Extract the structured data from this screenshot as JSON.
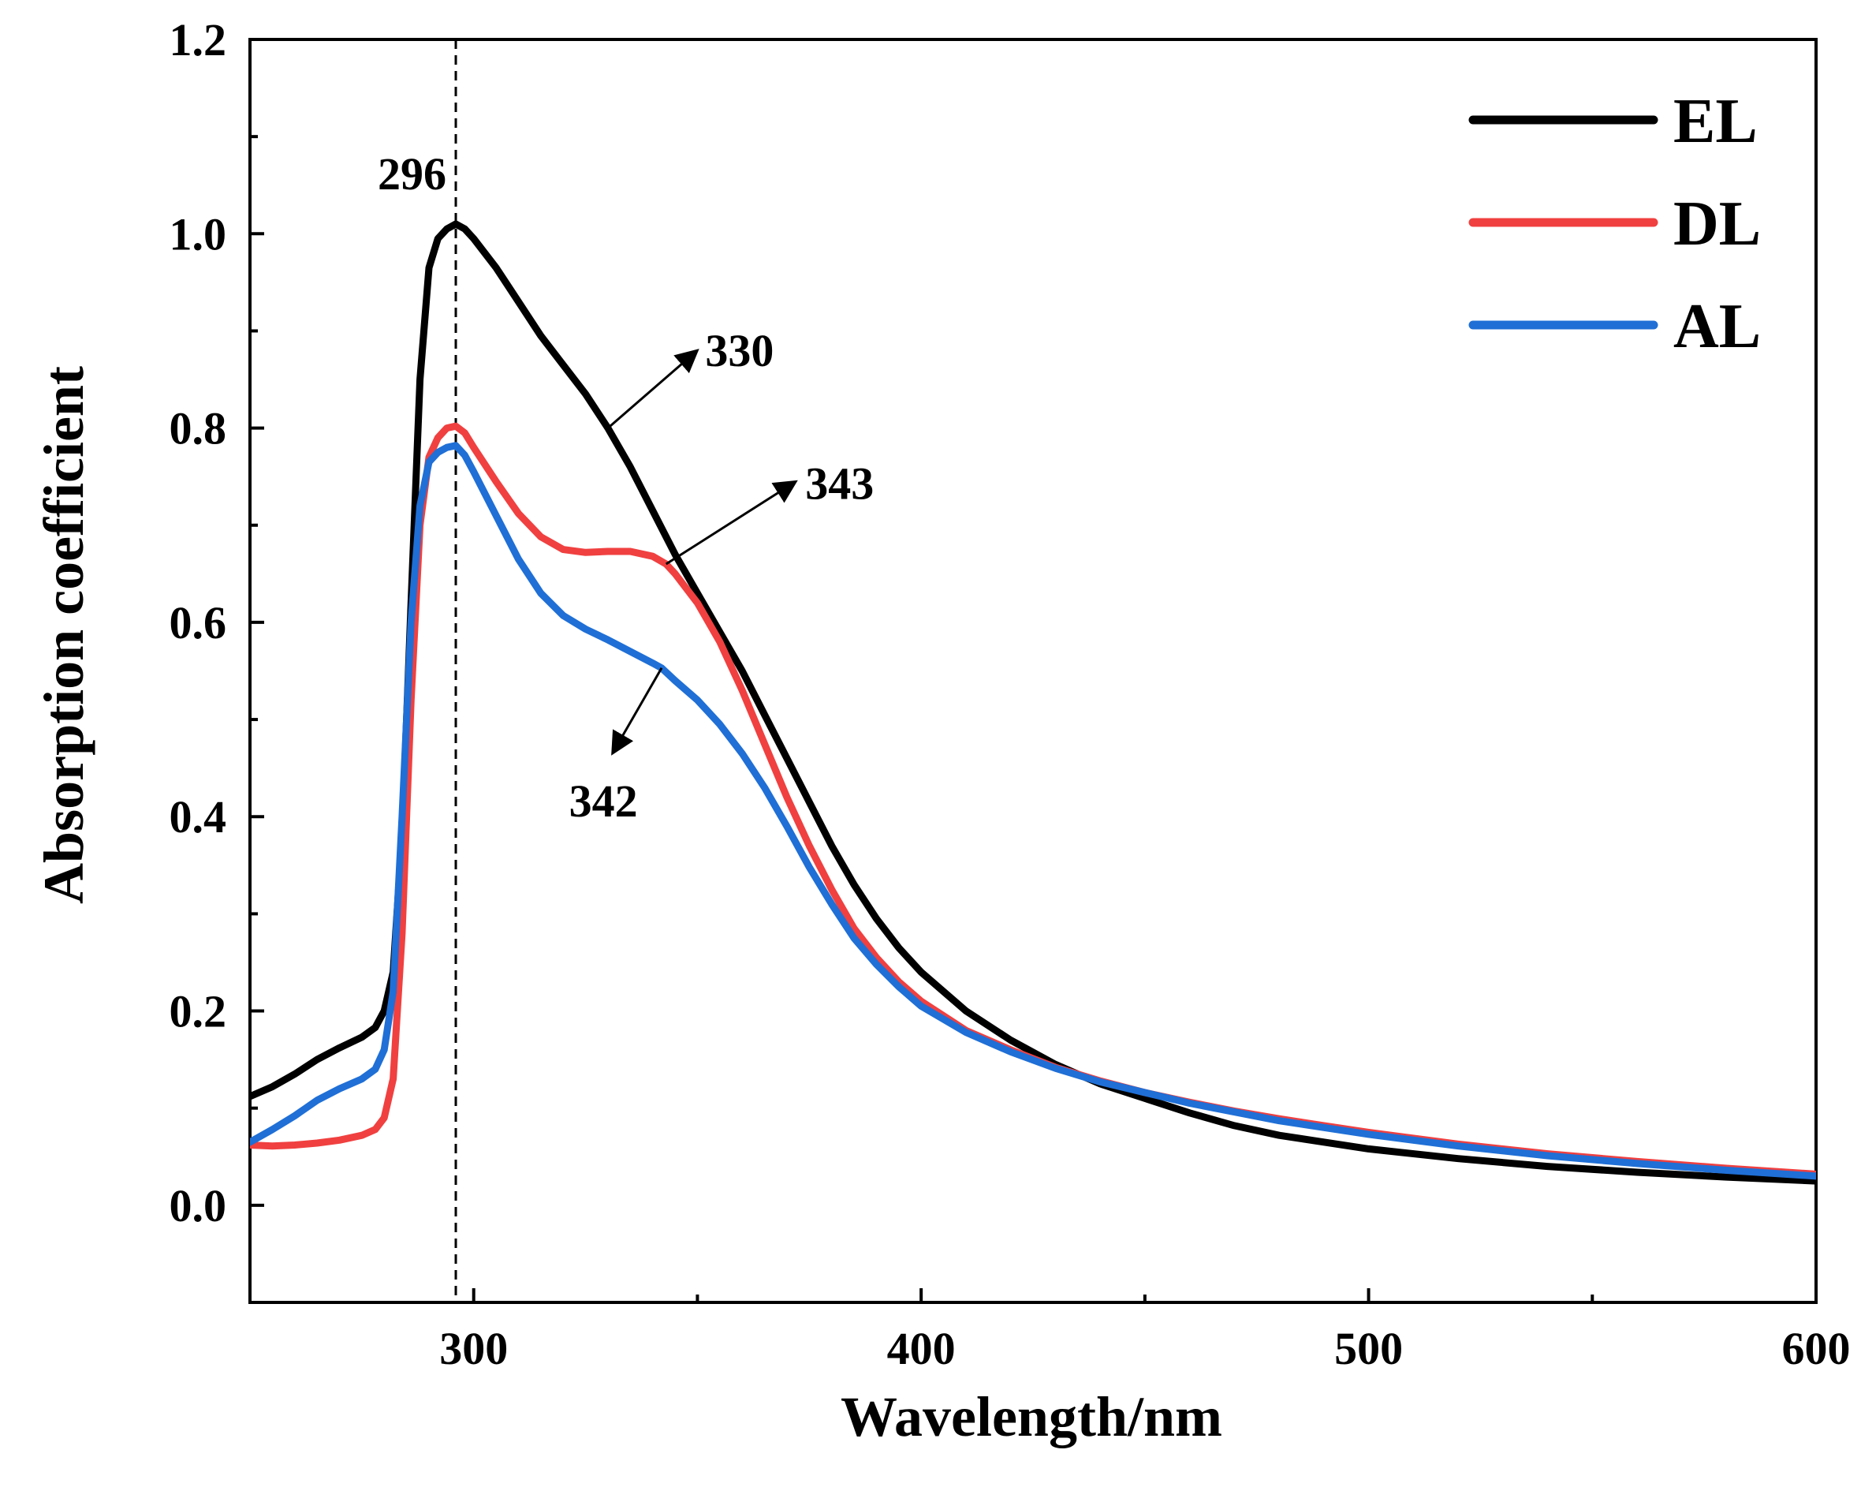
{
  "chart_data": {
    "type": "line",
    "title": "",
    "xlabel": "Wavelength/nm",
    "ylabel": "Absorption coefficient",
    "xlim": [
      250,
      600
    ],
    "ylim": [
      -0.1,
      1.2
    ],
    "x_ticks": [
      300,
      400,
      500,
      600
    ],
    "x_minor_ticks": [
      350,
      450,
      550
    ],
    "y_ticks": [
      0.0,
      0.2,
      0.4,
      0.6,
      0.8,
      1.0,
      1.2
    ],
    "y_tick_labels": [
      "0.0",
      "0.2",
      "0.4",
      "0.6",
      "0.8",
      "1.0",
      "1.2"
    ],
    "grid": false,
    "legend_position": "top-right",
    "series": [
      {
        "name": "EL",
        "color": "#000000",
        "points": [
          [
            250,
            0.112
          ],
          [
            255,
            0.122
          ],
          [
            260,
            0.135
          ],
          [
            265,
            0.15
          ],
          [
            270,
            0.162
          ],
          [
            275,
            0.173
          ],
          [
            278,
            0.183
          ],
          [
            280,
            0.2
          ],
          [
            282,
            0.24
          ],
          [
            284,
            0.38
          ],
          [
            286,
            0.62
          ],
          [
            288,
            0.85
          ],
          [
            290,
            0.965
          ],
          [
            292,
            0.995
          ],
          [
            294,
            1.005
          ],
          [
            296,
            1.01
          ],
          [
            298,
            1.005
          ],
          [
            300,
            0.995
          ],
          [
            305,
            0.965
          ],
          [
            310,
            0.93
          ],
          [
            315,
            0.895
          ],
          [
            320,
            0.865
          ],
          [
            325,
            0.835
          ],
          [
            330,
            0.8
          ],
          [
            335,
            0.76
          ],
          [
            340,
            0.715
          ],
          [
            345,
            0.67
          ],
          [
            350,
            0.63
          ],
          [
            355,
            0.59
          ],
          [
            360,
            0.55
          ],
          [
            365,
            0.505
          ],
          [
            370,
            0.46
          ],
          [
            375,
            0.415
          ],
          [
            380,
            0.37
          ],
          [
            385,
            0.33
          ],
          [
            390,
            0.295
          ],
          [
            395,
            0.265
          ],
          [
            400,
            0.24
          ],
          [
            410,
            0.2
          ],
          [
            420,
            0.17
          ],
          [
            430,
            0.145
          ],
          [
            440,
            0.125
          ],
          [
            450,
            0.11
          ],
          [
            460,
            0.095
          ],
          [
            470,
            0.082
          ],
          [
            480,
            0.072
          ],
          [
            490,
            0.065
          ],
          [
            500,
            0.058
          ],
          [
            520,
            0.048
          ],
          [
            540,
            0.04
          ],
          [
            560,
            0.034
          ],
          [
            580,
            0.029
          ],
          [
            600,
            0.025
          ]
        ]
      },
      {
        "name": "DL",
        "color": "#f04040",
        "points": [
          [
            250,
            0.062
          ],
          [
            255,
            0.061
          ],
          [
            260,
            0.062
          ],
          [
            265,
            0.064
          ],
          [
            270,
            0.067
          ],
          [
            275,
            0.072
          ],
          [
            278,
            0.078
          ],
          [
            280,
            0.09
          ],
          [
            282,
            0.13
          ],
          [
            284,
            0.28
          ],
          [
            286,
            0.52
          ],
          [
            288,
            0.7
          ],
          [
            290,
            0.77
          ],
          [
            292,
            0.79
          ],
          [
            294,
            0.8
          ],
          [
            296,
            0.802
          ],
          [
            298,
            0.795
          ],
          [
            300,
            0.78
          ],
          [
            305,
            0.745
          ],
          [
            310,
            0.712
          ],
          [
            315,
            0.688
          ],
          [
            320,
            0.675
          ],
          [
            325,
            0.672
          ],
          [
            330,
            0.673
          ],
          [
            335,
            0.673
          ],
          [
            340,
            0.668
          ],
          [
            343,
            0.66
          ],
          [
            345,
            0.65
          ],
          [
            350,
            0.62
          ],
          [
            355,
            0.58
          ],
          [
            360,
            0.53
          ],
          [
            365,
            0.475
          ],
          [
            370,
            0.42
          ],
          [
            375,
            0.37
          ],
          [
            380,
            0.325
          ],
          [
            385,
            0.285
          ],
          [
            390,
            0.255
          ],
          [
            395,
            0.23
          ],
          [
            400,
            0.21
          ],
          [
            410,
            0.18
          ],
          [
            420,
            0.16
          ],
          [
            430,
            0.142
          ],
          [
            440,
            0.128
          ],
          [
            450,
            0.116
          ],
          [
            460,
            0.106
          ],
          [
            470,
            0.097
          ],
          [
            480,
            0.089
          ],
          [
            490,
            0.082
          ],
          [
            500,
            0.075
          ],
          [
            520,
            0.063
          ],
          [
            540,
            0.053
          ],
          [
            560,
            0.045
          ],
          [
            580,
            0.038
          ],
          [
            600,
            0.032
          ]
        ]
      },
      {
        "name": "AL",
        "color": "#1f6fd6",
        "points": [
          [
            250,
            0.065
          ],
          [
            255,
            0.078
          ],
          [
            260,
            0.092
          ],
          [
            265,
            0.108
          ],
          [
            270,
            0.12
          ],
          [
            275,
            0.13
          ],
          [
            278,
            0.14
          ],
          [
            280,
            0.16
          ],
          [
            282,
            0.22
          ],
          [
            284,
            0.4
          ],
          [
            286,
            0.6
          ],
          [
            288,
            0.72
          ],
          [
            290,
            0.765
          ],
          [
            292,
            0.775
          ],
          [
            294,
            0.78
          ],
          [
            296,
            0.782
          ],
          [
            298,
            0.772
          ],
          [
            300,
            0.755
          ],
          [
            305,
            0.71
          ],
          [
            310,
            0.665
          ],
          [
            315,
            0.63
          ],
          [
            320,
            0.607
          ],
          [
            325,
            0.593
          ],
          [
            330,
            0.582
          ],
          [
            335,
            0.57
          ],
          [
            340,
            0.558
          ],
          [
            342,
            0.553
          ],
          [
            345,
            0.54
          ],
          [
            350,
            0.52
          ],
          [
            355,
            0.495
          ],
          [
            360,
            0.465
          ],
          [
            365,
            0.43
          ],
          [
            370,
            0.39
          ],
          [
            375,
            0.348
          ],
          [
            380,
            0.31
          ],
          [
            385,
            0.275
          ],
          [
            390,
            0.248
          ],
          [
            395,
            0.225
          ],
          [
            400,
            0.205
          ],
          [
            410,
            0.178
          ],
          [
            420,
            0.158
          ],
          [
            430,
            0.141
          ],
          [
            440,
            0.127
          ],
          [
            450,
            0.116
          ],
          [
            460,
            0.105
          ],
          [
            470,
            0.096
          ],
          [
            480,
            0.087
          ],
          [
            490,
            0.08
          ],
          [
            500,
            0.073
          ],
          [
            520,
            0.061
          ],
          [
            540,
            0.051
          ],
          [
            560,
            0.043
          ],
          [
            580,
            0.036
          ],
          [
            600,
            0.03
          ]
        ]
      }
    ],
    "annotations": [
      {
        "label": "296",
        "kind": "vline",
        "x": 296
      },
      {
        "label": "330",
        "kind": "arrow",
        "x_from": 330,
        "y_from": 0.8,
        "x_to": 350,
        "y_to": 0.88
      },
      {
        "label": "343",
        "kind": "arrow",
        "x_from": 343,
        "y_from": 0.66,
        "x_to": 372,
        "y_to": 0.745
      },
      {
        "label": "342",
        "kind": "arrow",
        "x_from": 342,
        "y_from": 0.553,
        "x_to": 331,
        "y_to": 0.465
      }
    ]
  }
}
